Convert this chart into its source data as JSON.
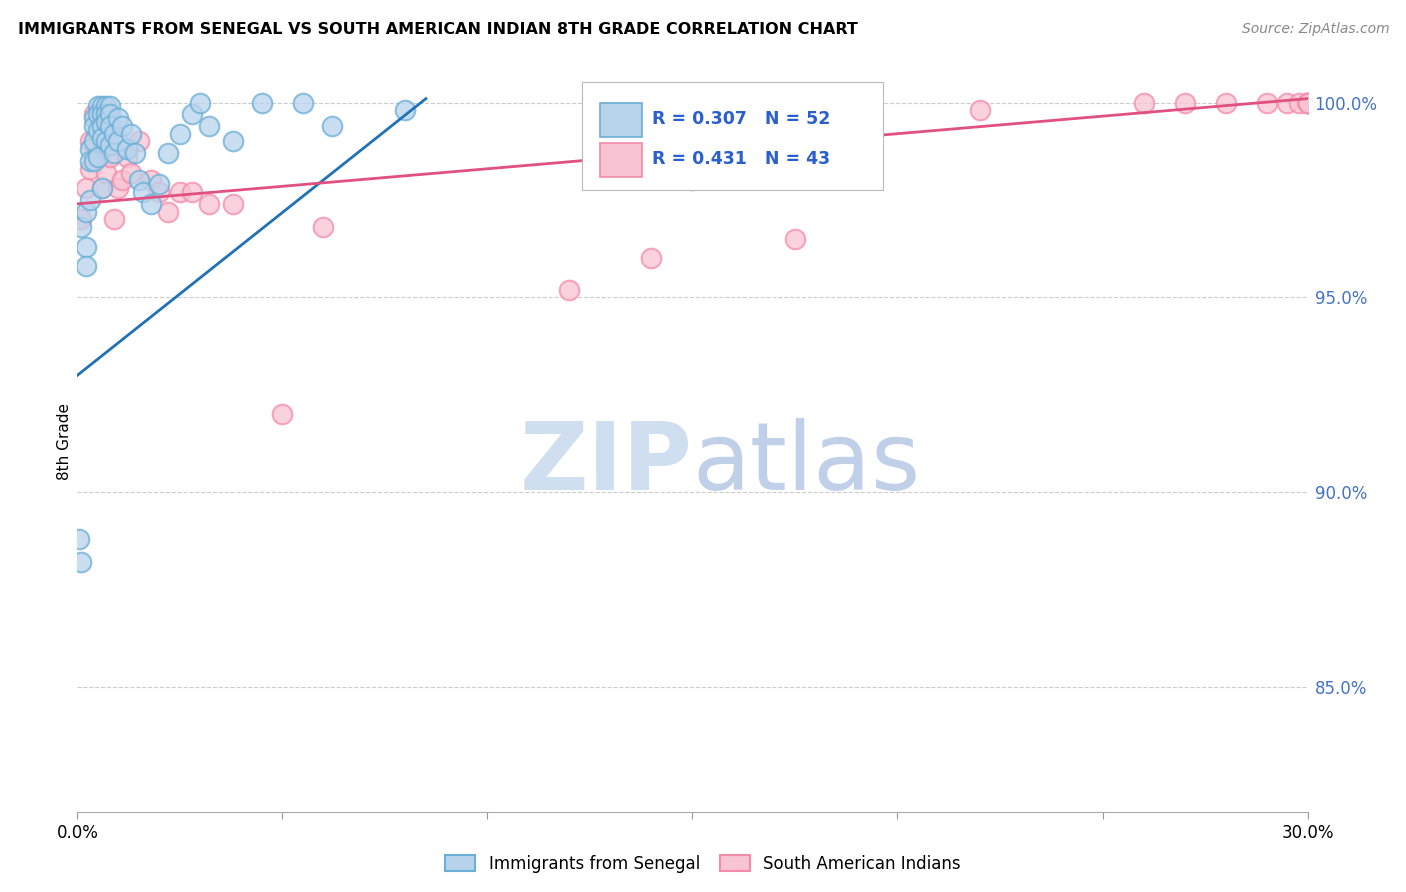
{
  "title": "IMMIGRANTS FROM SENEGAL VS SOUTH AMERICAN INDIAN 8TH GRADE CORRELATION CHART",
  "source": "Source: ZipAtlas.com",
  "ylabel": "8th Grade",
  "yaxis_ticks": [
    "100.0%",
    "95.0%",
    "90.0%",
    "85.0%"
  ],
  "yaxis_tick_values": [
    1.0,
    0.95,
    0.9,
    0.85
  ],
  "xlim": [
    0.0,
    0.3
  ],
  "ylim": [
    0.818,
    1.008
  ],
  "legend_label1": "Immigrants from Senegal",
  "legend_label2": "South American Indians",
  "blue_color_face": "#b8d4ed",
  "blue_color_edge": "#6baed6",
  "pink_color_face": "#f9c4d2",
  "pink_color_edge": "#f48baa",
  "blue_line_color": "#2171b5",
  "pink_line_color": "#e05080",
  "watermark_zip_color": "#d0dff0",
  "watermark_atlas_color": "#c0d0e8",
  "grid_color": "#cccccc",
  "blue_scatter_x": [
    0.0005,
    0.001,
    0.001,
    0.002,
    0.002,
    0.002,
    0.003,
    0.003,
    0.003,
    0.004,
    0.004,
    0.004,
    0.004,
    0.005,
    0.005,
    0.005,
    0.005,
    0.006,
    0.006,
    0.006,
    0.006,
    0.006,
    0.007,
    0.007,
    0.007,
    0.007,
    0.008,
    0.008,
    0.008,
    0.008,
    0.009,
    0.009,
    0.01,
    0.01,
    0.011,
    0.012,
    0.013,
    0.014,
    0.015,
    0.016,
    0.018,
    0.02,
    0.022,
    0.025,
    0.028,
    0.03,
    0.032,
    0.038,
    0.045,
    0.055,
    0.062,
    0.08
  ],
  "blue_scatter_y": [
    0.888,
    0.882,
    0.968,
    0.963,
    0.958,
    0.972,
    0.988,
    0.985,
    0.975,
    0.996,
    0.994,
    0.99,
    0.985,
    0.999,
    0.997,
    0.993,
    0.986,
    0.999,
    0.997,
    0.994,
    0.991,
    0.978,
    0.999,
    0.997,
    0.995,
    0.99,
    0.999,
    0.997,
    0.994,
    0.989,
    0.992,
    0.987,
    0.996,
    0.99,
    0.994,
    0.988,
    0.992,
    0.987,
    0.98,
    0.977,
    0.974,
    0.979,
    0.987,
    0.992,
    0.997,
    1.0,
    0.994,
    0.99,
    1.0,
    1.0,
    0.994,
    0.998
  ],
  "pink_scatter_x": [
    0.001,
    0.002,
    0.003,
    0.003,
    0.004,
    0.005,
    0.006,
    0.006,
    0.007,
    0.007,
    0.008,
    0.008,
    0.009,
    0.01,
    0.011,
    0.012,
    0.013,
    0.015,
    0.018,
    0.02,
    0.022,
    0.025,
    0.028,
    0.032,
    0.038,
    0.05,
    0.06,
    0.12,
    0.14,
    0.15,
    0.155,
    0.175,
    0.22,
    0.26,
    0.27,
    0.28,
    0.29,
    0.295,
    0.298,
    0.3,
    0.3,
    0.3,
    0.3
  ],
  "pink_scatter_y": [
    0.97,
    0.978,
    0.99,
    0.983,
    0.997,
    0.992,
    0.978,
    0.988,
    0.994,
    0.982,
    0.994,
    0.986,
    0.97,
    0.978,
    0.98,
    0.986,
    0.982,
    0.99,
    0.98,
    0.977,
    0.972,
    0.977,
    0.977,
    0.974,
    0.974,
    0.92,
    0.968,
    0.952,
    0.96,
    0.98,
    0.988,
    0.965,
    0.998,
    1.0,
    1.0,
    1.0,
    1.0,
    1.0,
    1.0,
    1.0,
    1.0,
    1.0,
    1.0
  ],
  "blue_trend_x": [
    0.0,
    0.085
  ],
  "blue_trend_y": [
    0.93,
    1.001
  ],
  "pink_trend_x": [
    0.0,
    0.3
  ],
  "pink_trend_y": [
    0.974,
    1.001
  ]
}
